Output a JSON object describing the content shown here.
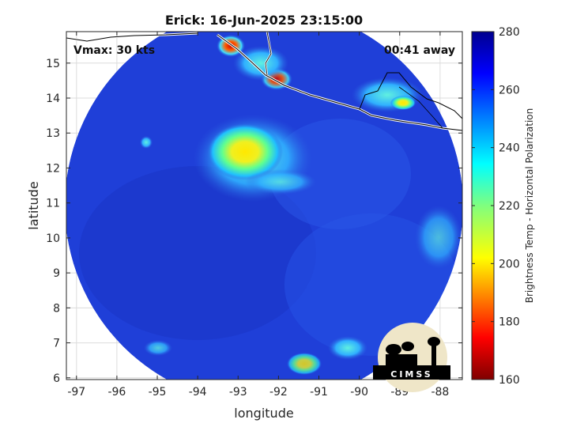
{
  "title": "Erick: 16-Jun-2025 23:15:00",
  "vmax_label": "Vmax: 30 kts",
  "time_away_label": "00:41 away",
  "xlabel": "longitude",
  "ylabel": "latitude",
  "colorbar_label": "Brightness Temp - Horizontal Polarization",
  "logo_text": "CIMSS",
  "chart_data": {
    "type": "heatmap",
    "title": "Erick: 16-Jun-2025 23:15:00",
    "xlabel": "longitude",
    "ylabel": "latitude",
    "xlim": [
      -97.25,
      -87.45
    ],
    "ylim": [
      5.95,
      15.9
    ],
    "x_ticks": [
      -97,
      -96,
      -95,
      -94,
      -93,
      -92,
      -91,
      -90,
      -89,
      -88
    ],
    "y_ticks": [
      6,
      7,
      8,
      9,
      10,
      11,
      12,
      13,
      14,
      15
    ],
    "grid": true,
    "colorbar": {
      "label": "Brightness Temp - Horizontal Polarization",
      "range": [
        160,
        280
      ],
      "ticks": [
        160,
        180,
        200,
        220,
        240,
        260,
        280
      ],
      "colormap": "jet"
    },
    "swath": {
      "center_lon": -92.3,
      "center_lat": 10.85,
      "radius_deg": 5.0
    },
    "features": [
      {
        "name": "storm-convection",
        "lon": -92.6,
        "lat": 12.3,
        "value": 200
      },
      {
        "name": "coast-convection-a",
        "lon": -93.2,
        "lat": 15.5,
        "value": 175
      },
      {
        "name": "coast-convection-b",
        "lon": -91.8,
        "lat": 14.4,
        "value": 190
      },
      {
        "name": "coast-convection-c",
        "lon": -89.0,
        "lat": 14.0,
        "value": 205
      },
      {
        "name": "southern-convection",
        "lon": -91.0,
        "lat": 6.4,
        "value": 215
      }
    ],
    "annotations": [
      "Vmax: 30 kts",
      "00:41 away"
    ],
    "colors": {
      "background_field": "#1e3fd6",
      "land": "#ffffff",
      "coastline": "#000000"
    }
  }
}
